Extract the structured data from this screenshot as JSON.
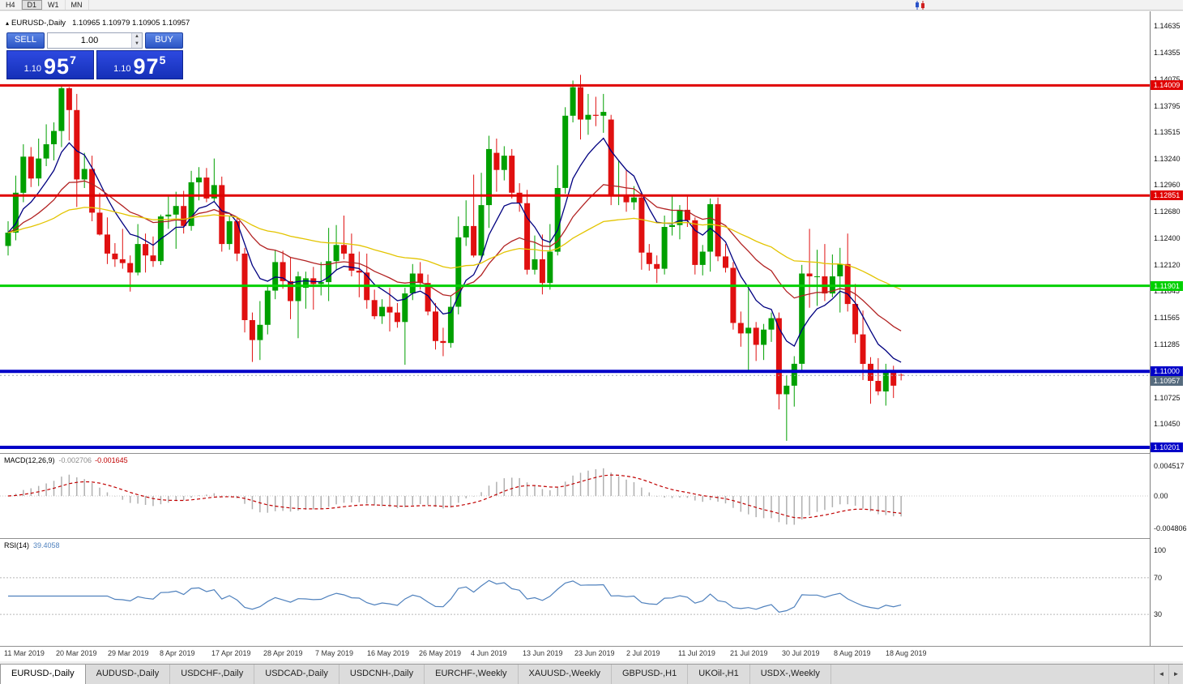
{
  "toolbar": {
    "periods": [
      "H4",
      "D1",
      "W1",
      "MN"
    ],
    "active_period": "D1"
  },
  "icons": {
    "tab_scroll_left": "◄",
    "tab_scroll_right": "►",
    "collapse_triangle": "▴",
    "volume_up": "▲",
    "volume_down": "▼"
  },
  "chart_header": {
    "symbol": "EURUSD-,Daily",
    "ohlc": "1.10965 1.10979 1.10905 1.10957"
  },
  "trade_panel": {
    "sell_label": "SELL",
    "buy_label": "BUY",
    "volume": "1.00",
    "sell_price": {
      "prefix": "1.10",
      "big": "95",
      "sup": "7"
    },
    "buy_price": {
      "prefix": "1.10",
      "big": "97",
      "sup": "5"
    }
  },
  "price_axis": {
    "grid_labels": [
      "1.14635",
      "1.14355",
      "1.14075",
      "1.13795",
      "1.13515",
      "1.13240",
      "1.12960",
      "1.12680",
      "1.12400",
      "1.12120",
      "1.11845",
      "1.11565",
      "1.11285",
      "1.10725",
      "1.10450"
    ]
  },
  "current_price": {
    "value": 1.10957,
    "label": "1.10957",
    "tag_color": "#566b7e",
    "line_color": "#9aa7b4"
  },
  "macd_panel": {
    "name": "MACD(12,26,9)",
    "value_main": "-0.002706",
    "value_signal": "-0.001645",
    "axis_labels": [
      "0.004517",
      "0.00",
      "-0.004806"
    ],
    "histogram_color": "#b0b0b0",
    "signal_color": "#c00000"
  },
  "rsi_panel": {
    "name": "RSI(14)",
    "value": "39.4058",
    "axis_labels": [
      "100",
      "70",
      "30"
    ],
    "levels": [
      70,
      30
    ],
    "line_color": "#4f81bd"
  },
  "date_axis": {
    "labels": [
      "11 Mar 2019",
      "20 Mar 2019",
      "29 Mar 2019",
      "8 Apr 2019",
      "17 Apr 2019",
      "28 Apr 2019",
      "7 May 2019",
      "16 May 2019",
      "26 May 2019",
      "4 Jun 2019",
      "13 Jun 2019",
      "23 Jun 2019",
      "2 Jul 2019",
      "11 Jul 2019",
      "21 Jul 2019",
      "30 Jul 2019",
      "8 Aug 2019",
      "18 Aug 2019"
    ]
  },
  "tabs": {
    "active": "EURUSD-,Daily",
    "items": [
      "EURUSD-,Daily",
      "AUDUSD-,Daily",
      "USDCHF-,Daily",
      "USDCAD-,Daily",
      "USDCNH-,Daily",
      "EURCHF-,Weekly",
      "XAUUSD-,Weekly",
      "GBPUSD-,H1",
      "UKOil-,H1",
      "USDX-,Weekly"
    ]
  },
  "chart_data": {
    "type": "candlestick",
    "symbol": "EURUSD-",
    "timeframe": "Daily",
    "up_color": "#00a000",
    "down_color": "#e01010",
    "moving_averages": [
      {
        "period": 8,
        "color": "#000080"
      },
      {
        "period": 21,
        "color": "#b22222"
      },
      {
        "period": 55,
        "color": "#e3c400"
      }
    ],
    "hlines": [
      {
        "price": 1.14009,
        "label": "1.14009",
        "color": "#e00000",
        "width": 3
      },
      {
        "price": 1.12851,
        "label": "1.12851",
        "color": "#e00000",
        "width": 3
      },
      {
        "price": 1.11901,
        "label": "1.11901",
        "color": "#00d000",
        "width": 3
      },
      {
        "price": 1.11,
        "label": "1.11000",
        "color": "#0000c8",
        "width": 4
      },
      {
        "price": 1.10201,
        "label": "1.10201",
        "color": "#0000c8",
        "width": 4
      }
    ],
    "candles": [
      [
        1.1232,
        1.1258,
        1.1222,
        1.1246
      ],
      [
        1.1246,
        1.1306,
        1.1238,
        1.1288
      ],
      [
        1.1288,
        1.1339,
        1.1278,
        1.1326
      ],
      [
        1.1326,
        1.1336,
        1.1294,
        1.1303
      ],
      [
        1.1303,
        1.1345,
        1.1295,
        1.1324
      ],
      [
        1.1324,
        1.136,
        1.1316,
        1.1339
      ],
      [
        1.1339,
        1.1362,
        1.1322,
        1.1353
      ],
      [
        1.1353,
        1.1401,
        1.1336,
        1.1398
      ],
      [
        1.1398,
        1.1399,
        1.1343,
        1.1375
      ],
      [
        1.1375,
        1.1392,
        1.1273,
        1.1302
      ],
      [
        1.1302,
        1.133,
        1.1293,
        1.1313
      ],
      [
        1.1313,
        1.1327,
        1.1258,
        1.1267
      ],
      [
        1.1267,
        1.1288,
        1.1243,
        1.1244
      ],
      [
        1.1244,
        1.1262,
        1.1213,
        1.1224
      ],
      [
        1.1224,
        1.1235,
        1.121,
        1.1218
      ],
      [
        1.1218,
        1.125,
        1.1208,
        1.1214
      ],
      [
        1.1214,
        1.1222,
        1.1184,
        1.1204
      ],
      [
        1.1204,
        1.1255,
        1.1201,
        1.1234
      ],
      [
        1.1234,
        1.1245,
        1.1204,
        1.1222
      ],
      [
        1.1222,
        1.1242,
        1.121,
        1.1216
      ],
      [
        1.1216,
        1.1265,
        1.1212,
        1.1263
      ],
      [
        1.1263,
        1.1285,
        1.125,
        1.1265
      ],
      [
        1.1265,
        1.1289,
        1.1229,
        1.1274
      ],
      [
        1.1274,
        1.129,
        1.1245,
        1.1253
      ],
      [
        1.1253,
        1.1311,
        1.1248,
        1.1299
      ],
      [
        1.1299,
        1.1315,
        1.128,
        1.1304
      ],
      [
        1.1304,
        1.1314,
        1.1278,
        1.1282
      ],
      [
        1.1282,
        1.1324,
        1.1278,
        1.1296
      ],
      [
        1.1296,
        1.1305,
        1.1226,
        1.1234
      ],
      [
        1.1234,
        1.1263,
        1.1228,
        1.1258
      ],
      [
        1.1258,
        1.1262,
        1.1216,
        1.1224
      ],
      [
        1.1224,
        1.123,
        1.1141,
        1.1154
      ],
      [
        1.1154,
        1.1162,
        1.111,
        1.1133
      ],
      [
        1.1133,
        1.1174,
        1.1112,
        1.1149
      ],
      [
        1.1149,
        1.119,
        1.1139,
        1.1185
      ],
      [
        1.1185,
        1.1228,
        1.1176,
        1.1215
      ],
      [
        1.1215,
        1.1227,
        1.1187,
        1.1195
      ],
      [
        1.1195,
        1.122,
        1.1155,
        1.1174
      ],
      [
        1.1174,
        1.1205,
        1.1135,
        1.12
      ],
      [
        1.1188,
        1.1205,
        1.1166,
        1.1198
      ],
      [
        1.1198,
        1.121,
        1.1165,
        1.1192
      ],
      [
        1.1192,
        1.1215,
        1.118,
        1.1194
      ],
      [
        1.1194,
        1.1251,
        1.1174,
        1.1216
      ],
      [
        1.1216,
        1.1254,
        1.1206,
        1.1233
      ],
      [
        1.1233,
        1.1264,
        1.1218,
        1.1224
      ],
      [
        1.1224,
        1.1245,
        1.12,
        1.1206
      ],
      [
        1.1206,
        1.1226,
        1.1178,
        1.1204
      ],
      [
        1.1204,
        1.1224,
        1.1166,
        1.1175
      ],
      [
        1.1175,
        1.1186,
        1.1155,
        1.1158
      ],
      [
        1.1158,
        1.1176,
        1.115,
        1.1168
      ],
      [
        1.1168,
        1.1188,
        1.1142,
        1.1162
      ],
      [
        1.1162,
        1.1172,
        1.1146,
        1.1152
      ],
      [
        1.1152,
        1.1188,
        1.1107,
        1.1182
      ],
      [
        1.1182,
        1.1213,
        1.1175,
        1.1203
      ],
      [
        1.1203,
        1.1215,
        1.1186,
        1.1193
      ],
      [
        1.1193,
        1.1202,
        1.1159,
        1.1163
      ],
      [
        1.1163,
        1.1172,
        1.1123,
        1.1132
      ],
      [
        1.1132,
        1.1146,
        1.1116,
        1.113
      ],
      [
        1.113,
        1.118,
        1.1125,
        1.1168
      ],
      [
        1.1168,
        1.1263,
        1.116,
        1.1241
      ],
      [
        1.1241,
        1.128,
        1.1232,
        1.1253
      ],
      [
        1.1253,
        1.1307,
        1.122,
        1.1222
      ],
      [
        1.1222,
        1.1309,
        1.1219,
        1.1275
      ],
      [
        1.1275,
        1.1348,
        1.1251,
        1.1334
      ],
      [
        1.133,
        1.1345,
        1.1289,
        1.1312
      ],
      [
        1.1312,
        1.1337,
        1.1301,
        1.1327
      ],
      [
        1.1327,
        1.1334,
        1.1282,
        1.1288
      ],
      [
        1.1288,
        1.1298,
        1.1268,
        1.1277
      ],
      [
        1.1277,
        1.1291,
        1.1202,
        1.1207
      ],
      [
        1.1207,
        1.1243,
        1.1202,
        1.1218
      ],
      [
        1.1218,
        1.1244,
        1.1181,
        1.1193
      ],
      [
        1.1193,
        1.1255,
        1.1186,
        1.1226
      ],
      [
        1.1226,
        1.1317,
        1.1222,
        1.1293
      ],
      [
        1.1293,
        1.1378,
        1.1287,
        1.1369
      ],
      [
        1.1369,
        1.1406,
        1.1362,
        1.1399
      ],
      [
        1.1399,
        1.1412,
        1.1344,
        1.1365
      ],
      [
        1.1365,
        1.1392,
        1.1349,
        1.137
      ],
      [
        1.137,
        1.1389,
        1.1358,
        1.1369
      ],
      [
        1.1369,
        1.1392,
        1.1351,
        1.1373
      ],
      [
        1.1365,
        1.137,
        1.1275,
        1.1285
      ],
      [
        1.1285,
        1.1322,
        1.1275,
        1.1286
      ],
      [
        1.1286,
        1.1312,
        1.1268,
        1.1278
      ],
      [
        1.1278,
        1.1295,
        1.127,
        1.1283
      ],
      [
        1.1283,
        1.1289,
        1.1207,
        1.1225
      ],
      [
        1.1225,
        1.1234,
        1.1206,
        1.1213
      ],
      [
        1.1213,
        1.1222,
        1.1193,
        1.1208
      ],
      [
        1.1208,
        1.1264,
        1.1202,
        1.1252
      ],
      [
        1.1252,
        1.1285,
        1.1243,
        1.1254
      ],
      [
        1.1254,
        1.1275,
        1.1239,
        1.127
      ],
      [
        1.127,
        1.1285,
        1.1252,
        1.1259
      ],
      [
        1.1259,
        1.1262,
        1.1202,
        1.1212
      ],
      [
        1.1212,
        1.1233,
        1.1201,
        1.1226
      ],
      [
        1.1226,
        1.1282,
        1.1205,
        1.1276
      ],
      [
        1.1276,
        1.1283,
        1.1216,
        1.1221
      ],
      [
        1.1221,
        1.1234,
        1.1204,
        1.1209
      ],
      [
        1.1209,
        1.1215,
        1.1144,
        1.1151
      ],
      [
        1.1151,
        1.1163,
        1.1126,
        1.114
      ],
      [
        1.114,
        1.1187,
        1.1101,
        1.1146
      ],
      [
        1.1146,
        1.1152,
        1.1111,
        1.1128
      ],
      [
        1.1128,
        1.115,
        1.1112,
        1.1144
      ],
      [
        1.1144,
        1.1162,
        1.1131,
        1.1156
      ],
      [
        1.1156,
        1.1162,
        1.106,
        1.1076
      ],
      [
        1.1076,
        1.1096,
        1.1027,
        1.1085
      ],
      [
        1.1085,
        1.1116,
        1.1063,
        1.1108
      ],
      [
        1.1108,
        1.1212,
        1.1101,
        1.1203
      ],
      [
        1.1203,
        1.125,
        1.1167,
        1.12
      ],
      [
        1.12,
        1.1228,
        1.1169,
        1.12
      ],
      [
        1.12,
        1.1234,
        1.1174,
        1.1182
      ],
      [
        1.1182,
        1.1223,
        1.1178,
        1.12
      ],
      [
        1.12,
        1.123,
        1.1162,
        1.1213
      ],
      [
        1.1213,
        1.1245,
        1.1163,
        1.1171
      ],
      [
        1.1171,
        1.1192,
        1.113,
        1.1139
      ],
      [
        1.1139,
        1.1164,
        1.1091,
        1.1108
      ],
      [
        1.1108,
        1.1115,
        1.1066,
        1.109
      ],
      [
        1.109,
        1.1114,
        1.1075,
        1.1079
      ],
      [
        1.1079,
        1.1108,
        1.1064,
        1.1099
      ],
      [
        1.1099,
        1.1106,
        1.1072,
        1.1085
      ],
      [
        1.10965,
        1.10979,
        1.10905,
        1.10957
      ]
    ]
  }
}
